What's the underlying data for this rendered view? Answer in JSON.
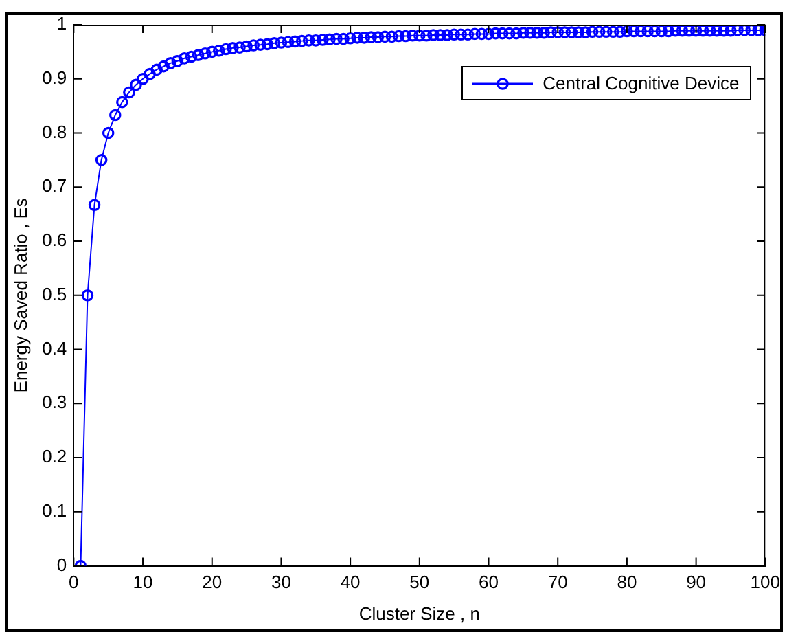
{
  "chart_data": {
    "type": "line",
    "xlabel": "Cluster Size , n",
    "ylabel": "Energy Saved Ratio , Es",
    "x": [
      1,
      2,
      3,
      4,
      5,
      6,
      7,
      8,
      9,
      10,
      11,
      12,
      13,
      14,
      15,
      16,
      17,
      18,
      19,
      20,
      21,
      22,
      23,
      24,
      25,
      26,
      27,
      28,
      29,
      30,
      31,
      32,
      33,
      34,
      35,
      36,
      37,
      38,
      39,
      40,
      41,
      42,
      43,
      44,
      45,
      46,
      47,
      48,
      49,
      50,
      51,
      52,
      53,
      54,
      55,
      56,
      57,
      58,
      59,
      60,
      61,
      62,
      63,
      64,
      65,
      66,
      67,
      68,
      69,
      70,
      71,
      72,
      73,
      74,
      75,
      76,
      77,
      78,
      79,
      80,
      81,
      82,
      83,
      84,
      85,
      86,
      87,
      88,
      89,
      90,
      91,
      92,
      93,
      94,
      95,
      96,
      97,
      98,
      99,
      100
    ],
    "series": [
      {
        "name": "Central Cognitive Device",
        "color": "#0000ff",
        "values": [
          0,
          0.5,
          0.667,
          0.75,
          0.8,
          0.833,
          0.857,
          0.875,
          0.889,
          0.9,
          0.909,
          0.917,
          0.923,
          0.929,
          0.933,
          0.938,
          0.941,
          0.944,
          0.947,
          0.95,
          0.952,
          0.955,
          0.957,
          0.958,
          0.96,
          0.962,
          0.963,
          0.964,
          0.966,
          0.967,
          0.968,
          0.969,
          0.97,
          0.971,
          0.971,
          0.972,
          0.973,
          0.974,
          0.974,
          0.975,
          0.976,
          0.976,
          0.977,
          0.977,
          0.978,
          0.978,
          0.979,
          0.979,
          0.98,
          0.98,
          0.98,
          0.981,
          0.981,
          0.981,
          0.982,
          0.982,
          0.982,
          0.983,
          0.983,
          0.983,
          0.984,
          0.984,
          0.984,
          0.984,
          0.985,
          0.985,
          0.985,
          0.985,
          0.986,
          0.986,
          0.986,
          0.986,
          0.986,
          0.986,
          0.987,
          0.987,
          0.987,
          0.987,
          0.987,
          0.988,
          0.988,
          0.988,
          0.988,
          0.988,
          0.988,
          0.988,
          0.989,
          0.989,
          0.989,
          0.989,
          0.989,
          0.989,
          0.989,
          0.989,
          0.989,
          0.99,
          0.99,
          0.99,
          0.99,
          0.99
        ]
      }
    ],
    "xlim": [
      0,
      100
    ],
    "xticks": [
      0,
      10,
      20,
      30,
      40,
      50,
      60,
      70,
      80,
      90,
      100
    ],
    "ylim": [
      0,
      1
    ],
    "yticks": [
      0,
      0.1,
      0.2,
      0.3,
      0.4,
      0.5,
      0.6,
      0.7,
      0.8,
      0.9,
      1
    ],
    "grid": false,
    "legend": "top right",
    "marker": "circle",
    "line_style": "solid"
  }
}
